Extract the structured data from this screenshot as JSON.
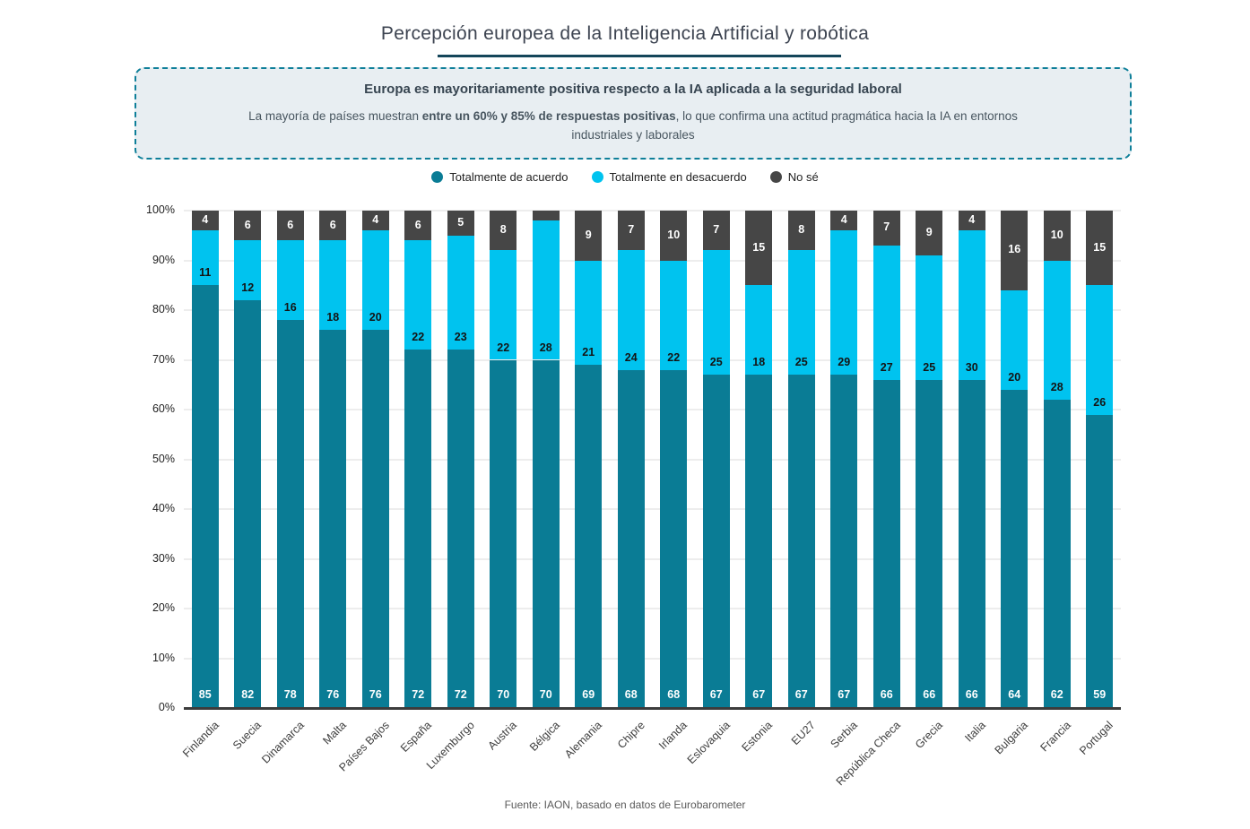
{
  "title": "Percepción europea de la Inteligencia Artificial y robótica",
  "callout": {
    "heading": "Europa es mayoritariamente positiva respecto a la IA aplicada a la seguridad laboral",
    "body_prefix": "La mayoría de países muestran ",
    "body_bold": "entre un 60% y 85% de respuestas positivas",
    "body_suffix": ", lo que confirma una actitud pragmática hacia la IA en entornos industriales y laborales"
  },
  "footer": "Fuente: IAON, basado en datos de Eurobarometer",
  "colors": {
    "agree": "#0a7c95",
    "disagree": "#00c3ef",
    "dontknow": "#464646",
    "accent_underline": "#14465a",
    "callout_border": "#0e7f99",
    "callout_bg": "#e8eef2"
  },
  "chart_data": {
    "type": "bar",
    "stacked": true,
    "title": "Percepción europea de la Inteligencia Artificial y robótica",
    "xlabel": "",
    "ylabel": "",
    "ylim": [
      0,
      100
    ],
    "grid": true,
    "legend_position": "top",
    "y_ticks": [
      "0%",
      "10%",
      "20%",
      "30%",
      "40%",
      "50%",
      "60%",
      "70%",
      "80%",
      "90%",
      "100%"
    ],
    "categories": [
      "Finlandia",
      "Suecia",
      "Dinamarca",
      "Malta",
      "Países Bajos",
      "España",
      "Luxemburgo",
      "Austria",
      "Bélgica",
      "Alemania",
      "Chipre",
      "Irlanda",
      "Eslovaquia",
      "Estonia",
      "EU27",
      "Serbia",
      "República Checa",
      "Grecia",
      "Italia",
      "Bulgaria",
      "Francia",
      "Portugal"
    ],
    "series": [
      {
        "name": "Totalmente de acuerdo",
        "color": "#0a7c95",
        "values": [
          85,
          82,
          78,
          76,
          76,
          72,
          72,
          70,
          70,
          69,
          68,
          68,
          67,
          67,
          67,
          67,
          66,
          66,
          66,
          64,
          62,
          59
        ]
      },
      {
        "name": "Totalmente en desacuerdo",
        "color": "#00c3ef",
        "values": [
          11,
          12,
          16,
          18,
          20,
          22,
          23,
          22,
          28,
          21,
          24,
          22,
          25,
          18,
          25,
          29,
          27,
          25,
          30,
          20,
          28,
          26
        ]
      },
      {
        "name": "No sé",
        "color": "#464646",
        "values": [
          4,
          6,
          6,
          6,
          4,
          6,
          5,
          8,
          2,
          9,
          7,
          10,
          7,
          15,
          8,
          4,
          7,
          9,
          4,
          16,
          10,
          15
        ],
        "note": "label hidden on chart for segments smaller than 3% (Bélgica)"
      }
    ]
  }
}
